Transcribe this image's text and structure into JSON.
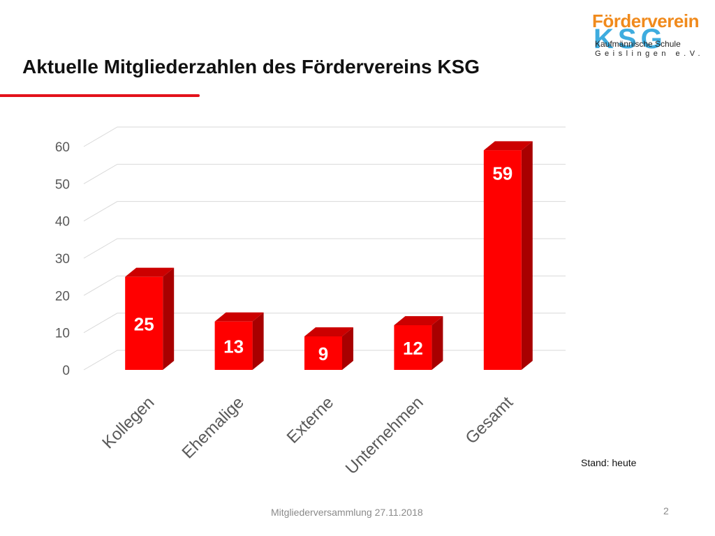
{
  "slide": {
    "title": "Aktuelle Mitgliederzahlen des Fördervereins KSG",
    "note": "Stand: heute",
    "footer": "Mitgliederversammlung 27.11.2018",
    "page_number": "2"
  },
  "logo": {
    "line1": "Förderverein",
    "line2": "KSG",
    "line3": "Kaufmännische Schule",
    "line4": "Geislingen e.V."
  },
  "colors": {
    "accent": "#e3121b",
    "bar_front": "#ff0000",
    "bar_side": "#a80000",
    "bar_top": "#cc0000"
  },
  "chart_data": {
    "type": "bar",
    "categories": [
      "Kollegen",
      "Ehemalige",
      "Externe",
      "Unternehmen",
      "Gesamt"
    ],
    "values": [
      25,
      13,
      9,
      12,
      59
    ],
    "ylim": [
      0,
      60
    ],
    "yticks": [
      0,
      10,
      20,
      30,
      40,
      50,
      60
    ],
    "grid": true,
    "three_d": true,
    "data_labels": true
  }
}
